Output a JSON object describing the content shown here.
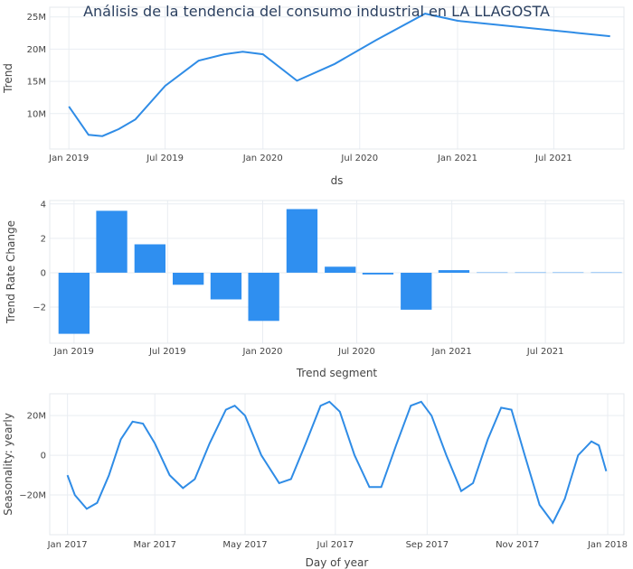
{
  "title": "Análisis de la tendencia del consumo industrial en LA LLAGOSTA",
  "colors": {
    "line": "#2f8ce6",
    "bar": "#2f8ff0"
  },
  "chart_data": [
    {
      "type": "line",
      "name": "trend",
      "xlabel": "ds",
      "ylabel": "Trend",
      "x_ticks": [
        {
          "label": "Jan 2019",
          "x": "2019-01-01"
        },
        {
          "label": "Jul 2019",
          "x": "2019-07-01"
        },
        {
          "label": "Jan 2020",
          "x": "2020-01-01"
        },
        {
          "label": "Jul 2020",
          "x": "2020-07-01"
        },
        {
          "label": "Jan 2021",
          "x": "2021-01-01"
        },
        {
          "label": "Jul 2021",
          "x": "2021-07-01"
        }
      ],
      "y_ticks": [
        {
          "label": "10M",
          "v": 10000000
        },
        {
          "label": "15M",
          "v": 15000000
        },
        {
          "label": "20M",
          "v": 20000000
        },
        {
          "label": "25M",
          "v": 25000000
        }
      ],
      "xlim": [
        "2018-11-26",
        "2021-11-10"
      ],
      "ylim": [
        4500000,
        26500000
      ],
      "points": [
        {
          "x": "2019-01-01",
          "y": 11100000
        },
        {
          "x": "2019-02-07",
          "y": 6700000
        },
        {
          "x": "2019-03-05",
          "y": 6500000
        },
        {
          "x": "2019-04-05",
          "y": 7600000
        },
        {
          "x": "2019-05-06",
          "y": 9100000
        },
        {
          "x": "2019-07-01",
          "y": 14300000
        },
        {
          "x": "2019-09-02",
          "y": 18200000
        },
        {
          "x": "2019-10-20",
          "y": 19200000
        },
        {
          "x": "2019-11-24",
          "y": 19600000
        },
        {
          "x": "2020-01-01",
          "y": 19200000
        },
        {
          "x": "2020-03-05",
          "y": 15100000
        },
        {
          "x": "2020-05-15",
          "y": 17700000
        },
        {
          "x": "2020-08-01",
          "y": 21400000
        },
        {
          "x": "2020-11-01",
          "y": 25500000
        },
        {
          "x": "2021-01-01",
          "y": 24400000
        },
        {
          "x": "2021-10-15",
          "y": 22000000
        }
      ]
    },
    {
      "type": "bar",
      "name": "trend-rate-change",
      "xlabel": "Trend segment",
      "ylabel": "Trend Rate Change",
      "x_ticks": [
        {
          "label": "Jan 2019",
          "x": "2019-01-01"
        },
        {
          "label": "Jul 2019",
          "x": "2019-07-01"
        },
        {
          "label": "Jan 2020",
          "x": "2020-01-01"
        },
        {
          "label": "Jul 2020",
          "x": "2020-07-01"
        },
        {
          "label": "Jan 2021",
          "x": "2021-01-01"
        },
        {
          "label": "Jul 2021",
          "x": "2021-07-01"
        }
      ],
      "y_ticks": [
        {
          "label": "−2",
          "v": -2
        },
        {
          "label": "0",
          "v": 0
        },
        {
          "label": "2",
          "v": 2
        },
        {
          "label": "4",
          "v": 4
        }
      ],
      "xlim": [
        "2018-11-15",
        "2021-11-30"
      ],
      "ylim": [
        -4.1,
        4.2
      ],
      "bar_width_days": 60,
      "bars": [
        {
          "x": "2019-01-01",
          "v": -3.55
        },
        {
          "x": "2019-03-15",
          "v": 3.6
        },
        {
          "x": "2019-05-28",
          "v": 1.65
        },
        {
          "x": "2019-08-10",
          "v": -0.7
        },
        {
          "x": "2019-10-22",
          "v": -1.55
        },
        {
          "x": "2020-01-03",
          "v": -2.8
        },
        {
          "x": "2020-03-17",
          "v": 3.7
        },
        {
          "x": "2020-05-30",
          "v": 0.35
        },
        {
          "x": "2020-08-11",
          "v": -0.1
        },
        {
          "x": "2020-10-24",
          "v": -2.15
        },
        {
          "x": "2021-01-05",
          "v": 0.15
        },
        {
          "x": "2021-03-20",
          "v": 0.02
        },
        {
          "x": "2021-06-02",
          "v": 0.02
        },
        {
          "x": "2021-08-14",
          "v": 0.02
        },
        {
          "x": "2021-10-27",
          "v": 0.02
        }
      ]
    },
    {
      "type": "line",
      "name": "seasonality-yearly",
      "xlabel": "Day of year",
      "ylabel": "Seasonality: yearly",
      "x_ticks": [
        {
          "label": "Jan 2017",
          "x": "2017-01-01"
        },
        {
          "label": "Mar 2017",
          "x": "2017-03-01"
        },
        {
          "label": "May 2017",
          "x": "2017-05-01"
        },
        {
          "label": "Jul 2017",
          "x": "2017-07-01"
        },
        {
          "label": "Sep 2017",
          "x": "2017-09-01"
        },
        {
          "label": "Nov 2017",
          "x": "2017-11-01"
        },
        {
          "label": "Jan 2018",
          "x": "2018-01-01"
        }
      ],
      "y_ticks": [
        {
          "label": "−20M",
          "v": -20000000
        },
        {
          "label": "0",
          "v": 0
        },
        {
          "label": "20M",
          "v": 20000000
        }
      ],
      "xlim": [
        "2016-12-20",
        "2018-01-12"
      ],
      "ylim": [
        -40000000,
        31000000
      ],
      "points": [
        {
          "x": "2017-01-01",
          "y": -10000000
        },
        {
          "x": "2017-01-06",
          "y": -20000000
        },
        {
          "x": "2017-01-14",
          "y": -27000000
        },
        {
          "x": "2017-01-21",
          "y": -24000000
        },
        {
          "x": "2017-01-29",
          "y": -10000000
        },
        {
          "x": "2017-02-06",
          "y": 8000000
        },
        {
          "x": "2017-02-14",
          "y": 17000000
        },
        {
          "x": "2017-02-21",
          "y": 16000000
        },
        {
          "x": "2017-03-01",
          "y": 6000000
        },
        {
          "x": "2017-03-11",
          "y": -10000000
        },
        {
          "x": "2017-03-20",
          "y": -16500000
        },
        {
          "x": "2017-03-28",
          "y": -12000000
        },
        {
          "x": "2017-04-07",
          "y": 6000000
        },
        {
          "x": "2017-04-18",
          "y": 23000000
        },
        {
          "x": "2017-04-24",
          "y": 25000000
        },
        {
          "x": "2017-05-01",
          "y": 20000000
        },
        {
          "x": "2017-05-12",
          "y": 0
        },
        {
          "x": "2017-05-24",
          "y": -14000000
        },
        {
          "x": "2017-06-01",
          "y": -12000000
        },
        {
          "x": "2017-06-11",
          "y": 6000000
        },
        {
          "x": "2017-06-21",
          "y": 25000000
        },
        {
          "x": "2017-06-27",
          "y": 27000000
        },
        {
          "x": "2017-07-04",
          "y": 22000000
        },
        {
          "x": "2017-07-14",
          "y": 0
        },
        {
          "x": "2017-07-24",
          "y": -16000000
        },
        {
          "x": "2017-08-01",
          "y": -16000000
        },
        {
          "x": "2017-08-11",
          "y": 5000000
        },
        {
          "x": "2017-08-21",
          "y": 25000000
        },
        {
          "x": "2017-08-28",
          "y": 27000000
        },
        {
          "x": "2017-09-04",
          "y": 20000000
        },
        {
          "x": "2017-09-14",
          "y": 0
        },
        {
          "x": "2017-09-24",
          "y": -18000000
        },
        {
          "x": "2017-10-02",
          "y": -14000000
        },
        {
          "x": "2017-10-12",
          "y": 8000000
        },
        {
          "x": "2017-10-21",
          "y": 24000000
        },
        {
          "x": "2017-10-28",
          "y": 23000000
        },
        {
          "x": "2017-11-06",
          "y": 0
        },
        {
          "x": "2017-11-16",
          "y": -25000000
        },
        {
          "x": "2017-11-25",
          "y": -34000000
        },
        {
          "x": "2017-12-03",
          "y": -22000000
        },
        {
          "x": "2017-12-12",
          "y": 0
        },
        {
          "x": "2017-12-21",
          "y": 7000000
        },
        {
          "x": "2017-12-26",
          "y": 5000000
        },
        {
          "x": "2017-12-31",
          "y": -8000000
        }
      ]
    }
  ]
}
